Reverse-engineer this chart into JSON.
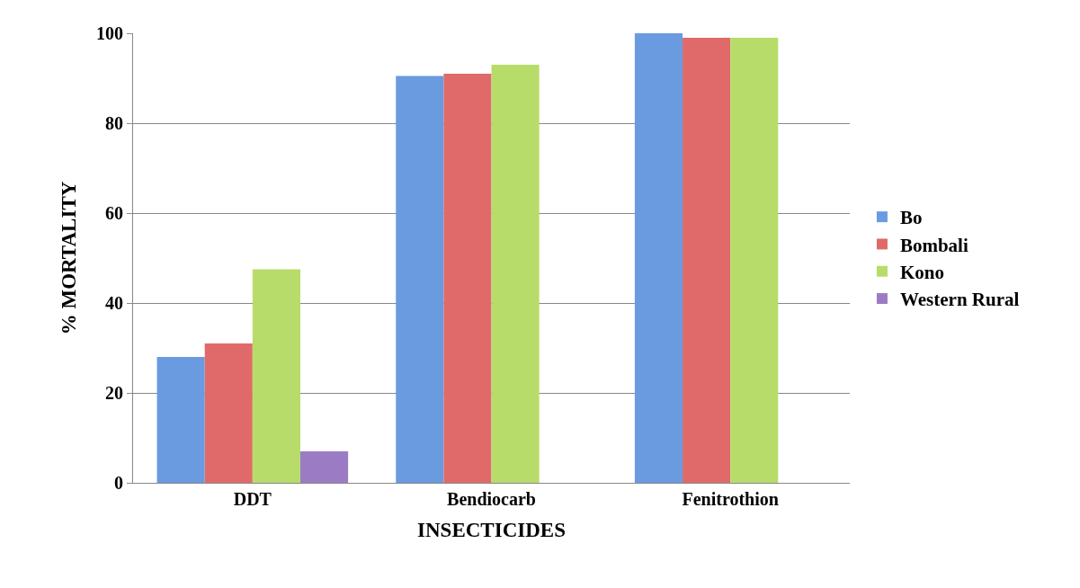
{
  "chart_data": {
    "type": "bar",
    "xlabel": "INSECTICIDES",
    "ylabel": "% MORTALITY",
    "categories": [
      "DDT",
      "Bendiocarb",
      "Fenitrothion"
    ],
    "series": [
      {
        "name": "Bo",
        "color": "#6a9be0",
        "values": [
          28,
          90.5,
          100
        ]
      },
      {
        "name": "Bombali",
        "color": "#e06a6a",
        "values": [
          31,
          91,
          99
        ]
      },
      {
        "name": "Kono",
        "color": "#b8dc6a",
        "values": [
          47.5,
          93,
          99
        ]
      },
      {
        "name": "Western Rural",
        "color": "#9b7cc4",
        "values": [
          7,
          null,
          null
        ]
      }
    ],
    "ylim": [
      0,
      100
    ],
    "yticks": [
      0,
      20,
      40,
      60,
      80,
      100
    ],
    "grid": "y",
    "legend": "right"
  }
}
